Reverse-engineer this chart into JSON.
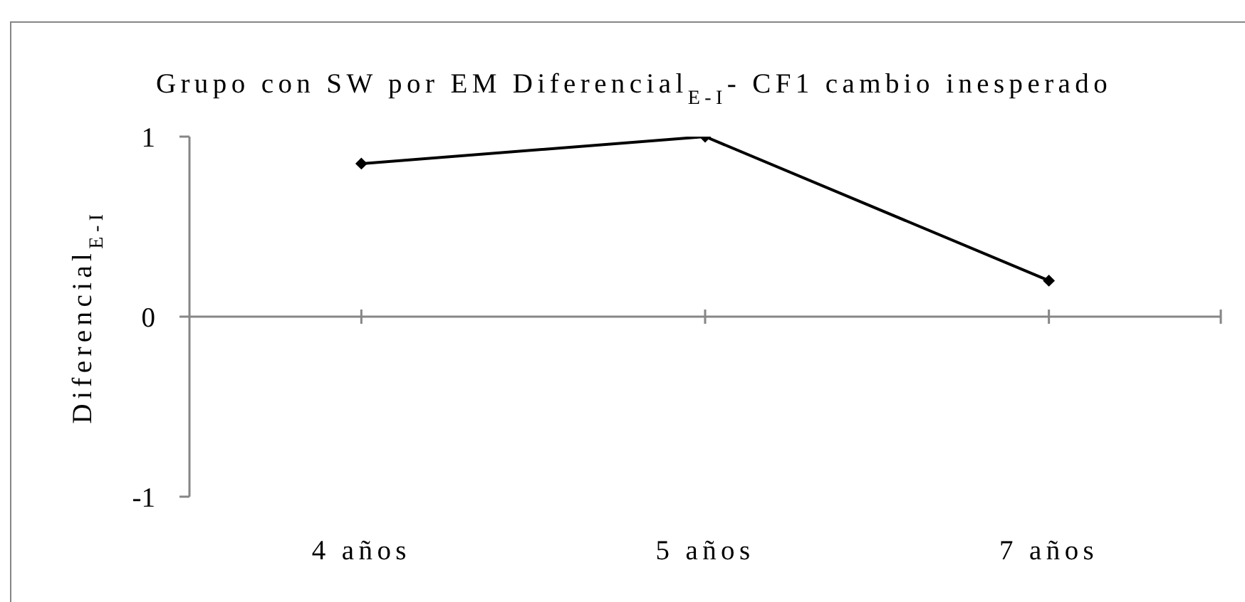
{
  "chart_data": {
    "type": "line",
    "title": "Grupo con SW por EM Diferencial$_{E-I}$- CF1 cambio inesperado",
    "ylabel": "Diferencial$_{E-I}$",
    "categories": [
      "4 años",
      "5 años",
      "7 años"
    ],
    "series": [
      {
        "color": "#000000",
        "values": [
          0.85,
          1,
          0.2
        ]
      }
    ],
    "ylim": [
      -1,
      1
    ],
    "yticks": [
      -1,
      0,
      1
    ],
    "marker": "diamond",
    "line_style": "solid"
  }
}
